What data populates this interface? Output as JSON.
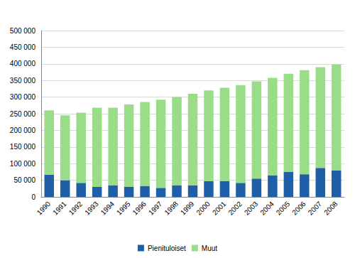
{
  "chart_data": {
    "type": "bar",
    "stacked": true,
    "grid": true,
    "legend": "bottom",
    "categories": [
      "1990",
      "1991",
      "1992",
      "1993",
      "1994",
      "1995",
      "1996",
      "1997",
      "1998",
      "1999",
      "2000",
      "2001",
      "2002",
      "2003",
      "2004",
      "2005",
      "2006",
      "2007",
      "2008"
    ],
    "series": [
      {
        "name": "Pienituloiset",
        "color": "#1f5fa8",
        "values": [
          67000,
          50000,
          42000,
          30000,
          35000,
          30000,
          32000,
          27000,
          35000,
          35000,
          47000,
          48000,
          42000,
          55000,
          65000,
          75000,
          68000,
          87000,
          80000
        ]
      },
      {
        "name": "Muut",
        "color": "#99dd88",
        "values": [
          193000,
          195000,
          211000,
          238000,
          233000,
          248000,
          253000,
          265000,
          265000,
          275000,
          273000,
          280000,
          294000,
          292000,
          293000,
          295000,
          313000,
          303000,
          318000
        ]
      }
    ],
    "ylim": [
      0,
      500000
    ],
    "yticks": [
      0,
      {
        "value": 50000,
        "label": "50 000"
      },
      {
        "value": 100000,
        "label": "100 000"
      },
      {
        "value": 150000,
        "label": "150 000"
      },
      {
        "value": 200000,
        "label": "200 000"
      },
      {
        "value": 250000,
        "label": "250 000"
      },
      {
        "value": 300000,
        "label": "300 000"
      },
      {
        "value": 350000,
        "label": "350 000"
      },
      {
        "value": 400000,
        "label": "400 000"
      },
      {
        "value": 450000,
        "label": "450 000"
      },
      {
        "value": 500000,
        "label": "500 000"
      }
    ]
  }
}
